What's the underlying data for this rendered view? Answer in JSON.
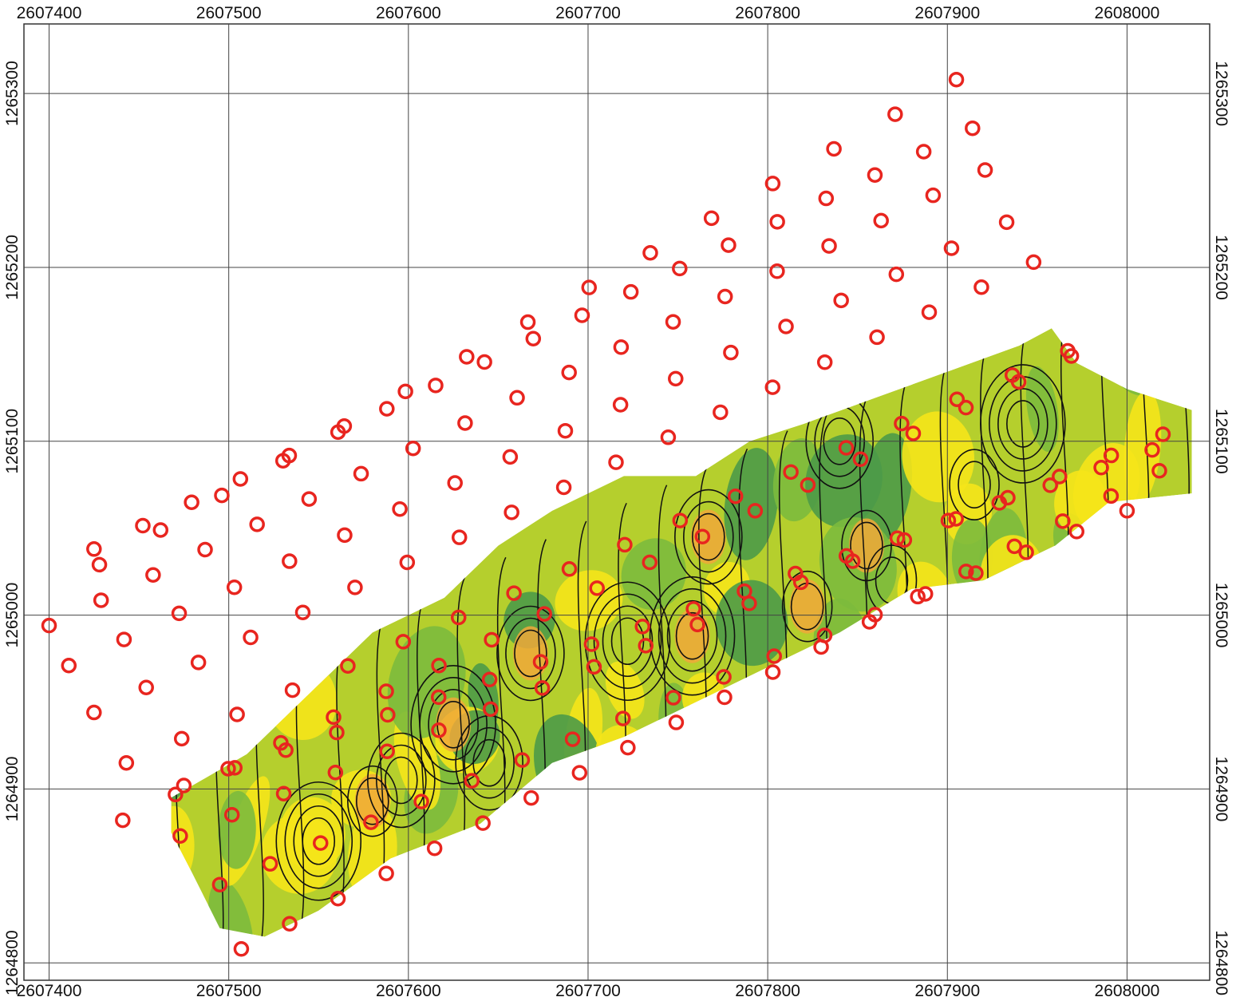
{
  "map": {
    "x_axis": {
      "ticks": [
        2607400,
        2607500,
        2607600,
        2607700,
        2607800,
        2607900,
        2608000
      ],
      "tick_labels": [
        "2607400",
        "2607500",
        "2607600",
        "2607700",
        "2607800",
        "2607900",
        "2608000"
      ]
    },
    "y_axis": {
      "ticks": [
        1265300,
        1265200,
        1265100,
        1265000,
        1264900,
        1264800
      ],
      "tick_labels": [
        "1265300",
        "1265200",
        "1265100",
        "1265000",
        "1264900",
        "1264800"
      ]
    },
    "extent": {
      "x": [
        2607386,
        2608046
      ],
      "y": [
        1264790,
        1265340
      ]
    },
    "grid": true,
    "colors": {
      "marker": "#e8251f",
      "contour": "#111111",
      "yellow": "#f5e41a",
      "light_green": "#b5cf2d",
      "green": "#7cba3d",
      "dark_green": "#4c9a48",
      "orange": "#f0a83a",
      "grid": "#444444"
    },
    "survey_lines": [
      {
        "start": [
          2607428,
          1265029
        ],
        "end": [
          2607905,
          1265308
        ],
        "count": 15
      },
      {
        "start": [
          2607425,
          1265038
        ],
        "end": [
          2607914,
          1265280
        ],
        "count": 19
      },
      {
        "start": [
          2607400,
          1264994
        ],
        "end": [
          2607921,
          1265256
        ],
        "count": 19
      },
      {
        "start": [
          2607411,
          1264971
        ],
        "end": [
          2607933,
          1265226
        ],
        "count": 18
      },
      {
        "start": [
          2607425,
          1264944
        ],
        "end": [
          2607948,
          1265203
        ],
        "count": 19
      },
      {
        "start": [
          2607441,
          1264882
        ],
        "end": [
          2607969,
          1265149
        ],
        "count": 19
      },
      {
        "start": [
          2607443,
          1264915
        ],
        "end": [
          2607967,
          1265152
        ],
        "count": 18
      },
      {
        "start": [
          2607473,
          1264873
        ],
        "end": [
          2608020,
          1265104
        ],
        "count": 20
      },
      {
        "start": [
          2607475,
          1264902
        ],
        "end": [
          2608014,
          1265095
        ],
        "count": 20
      },
      {
        "start": [
          2607495,
          1264845
        ],
        "end": [
          2608000,
          1265060
        ],
        "count": 19
      },
      {
        "start": [
          2607507,
          1264808
        ],
        "end": [
          2608018,
          1265083
        ],
        "count": 20
      }
    ],
    "anomaly_area": [
      [
        2607468,
        1264895
      ],
      [
        2607510,
        1264920
      ],
      [
        2607540,
        1264950
      ],
      [
        2607580,
        1264990
      ],
      [
        2607620,
        1265010
      ],
      [
        2607650,
        1265040
      ],
      [
        2607680,
        1265060
      ],
      [
        2607720,
        1265080
      ],
      [
        2607760,
        1265080
      ],
      [
        2607790,
        1265100
      ],
      [
        2607820,
        1265110
      ],
      [
        2607860,
        1265125
      ],
      [
        2607900,
        1265140
      ],
      [
        2607940,
        1265155
      ],
      [
        2607958,
        1265165
      ],
      [
        2607972,
        1265145
      ],
      [
        2608000,
        1265130
      ],
      [
        2608036,
        1265118
      ],
      [
        2608036,
        1265070
      ],
      [
        2607990,
        1265065
      ],
      [
        2607960,
        1265040
      ],
      [
        2607920,
        1265020
      ],
      [
        2607880,
        1265015
      ],
      [
        2607840,
        1264990
      ],
      [
        2607800,
        1264970
      ],
      [
        2607760,
        1264950
      ],
      [
        2607720,
        1264930
      ],
      [
        2607680,
        1264915
      ],
      [
        2607640,
        1264880
      ],
      [
        2607590,
        1264860
      ],
      [
        2607550,
        1264830
      ],
      [
        2607520,
        1264815
      ],
      [
        2607495,
        1264820
      ],
      [
        2607478,
        1264855
      ],
      [
        2607468,
        1264875
      ]
    ]
  }
}
